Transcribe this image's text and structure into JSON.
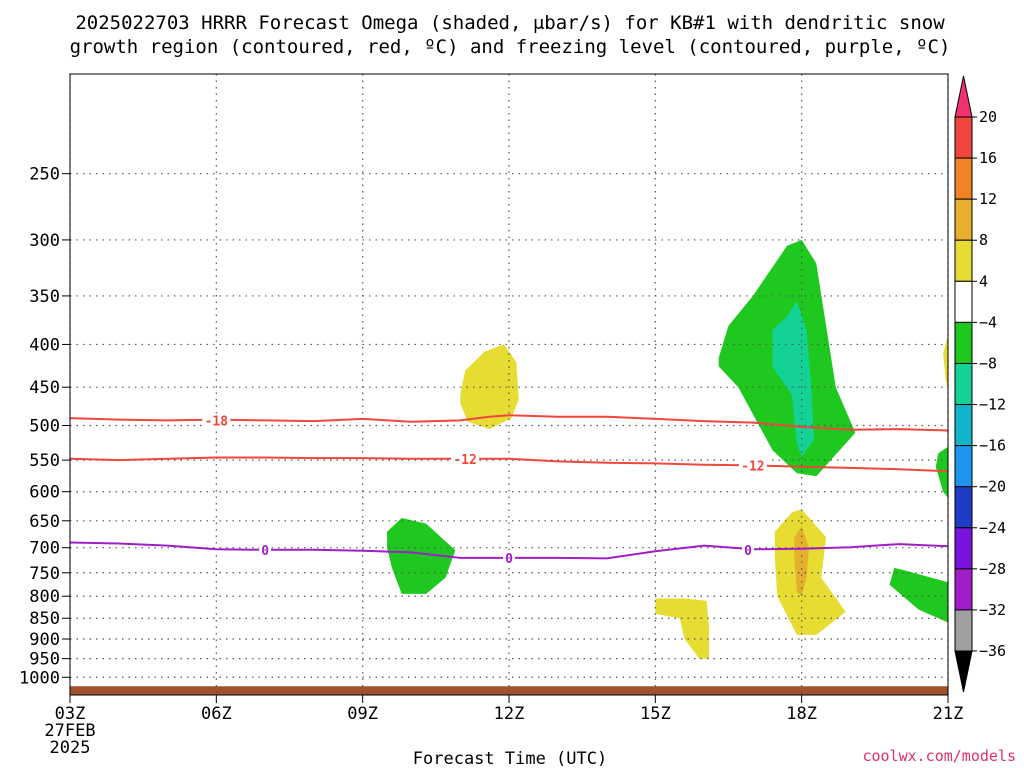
{
  "title": {
    "line1": "2025022703 HRRR Forecast Omega (shaded, μbar/s) for KB#1 with dendritic snow",
    "line2": "growth region (contoured, red, ºC) and freezing level (contoured, purple, ºC)"
  },
  "credit": "coolwx.com/models",
  "colors": {
    "red_contour": "#f0463c",
    "purple_contour": "#a01ec8",
    "ground": "#a0522d",
    "grid": "#555555"
  },
  "chart_data": {
    "type": "contour",
    "xlabel": "Forecast Time (UTC)",
    "ylabel": "",
    "y_scale": "log-pressure",
    "y_reversed": true,
    "xlim_hours": [
      3,
      21
    ],
    "ylim_hPa": [
      1050,
      190
    ],
    "x_ticks": [
      {
        "hour": 3,
        "label": "03Z",
        "sub": [
          "27FEB",
          "2025"
        ]
      },
      {
        "hour": 6,
        "label": "06Z"
      },
      {
        "hour": 9,
        "label": "09Z"
      },
      {
        "hour": 12,
        "label": "12Z"
      },
      {
        "hour": 15,
        "label": "15Z"
      },
      {
        "hour": 18,
        "label": "18Z"
      },
      {
        "hour": 21,
        "label": "21Z"
      }
    ],
    "y_ticks": [
      250,
      300,
      350,
      400,
      450,
      500,
      550,
      600,
      650,
      700,
      750,
      800,
      850,
      900,
      950,
      1000
    ],
    "colorbar": {
      "levels": [
        "20",
        "16",
        "12",
        "8",
        "4",
        "−4",
        "−8",
        "−12",
        "−16",
        "−20",
        "−24",
        "−28",
        "−32",
        "−36"
      ],
      "colors": [
        "#f0326e",
        "#f0463c",
        "#f08228",
        "#e6af2d",
        "#e6dc32",
        "#ffffff",
        "#1ec81e",
        "#14d296",
        "#14b4c8",
        "#1e96f0",
        "#1e3cc8",
        "#7814dc",
        "#a01ec8",
        "#a0a0a0",
        "#000000"
      ]
    },
    "shaded_regions": [
      {
        "band": "4 to 8",
        "color": "#e6dc32",
        "points": [
          [
            11.0,
            460
          ],
          [
            11.1,
            430
          ],
          [
            11.5,
            408
          ],
          [
            11.9,
            400
          ],
          [
            12.15,
            420
          ],
          [
            12.2,
            465
          ],
          [
            12.05,
            490
          ],
          [
            11.6,
            505
          ],
          [
            11.15,
            495
          ],
          [
            11.0,
            470
          ]
        ]
      },
      {
        "band": "-8 to -4",
        "color": "#1ec81e",
        "points": [
          [
            16.3,
            415
          ],
          [
            16.5,
            380
          ],
          [
            17.0,
            350
          ],
          [
            17.7,
            305
          ],
          [
            18.0,
            300
          ],
          [
            18.3,
            320
          ],
          [
            18.5,
            380
          ],
          [
            18.7,
            450
          ],
          [
            19.1,
            510
          ],
          [
            18.3,
            575
          ],
          [
            17.9,
            570
          ],
          [
            17.4,
            535
          ],
          [
            16.7,
            450
          ],
          [
            16.3,
            425
          ]
        ]
      },
      {
        "band": "-12 to -8",
        "color": "#14d296",
        "points": [
          [
            17.4,
            385
          ],
          [
            17.7,
            370
          ],
          [
            17.9,
            355
          ],
          [
            18.1,
            385
          ],
          [
            18.2,
            450
          ],
          [
            18.25,
            520
          ],
          [
            18.0,
            545
          ],
          [
            17.9,
            525
          ],
          [
            17.8,
            460
          ],
          [
            17.4,
            425
          ]
        ]
      },
      {
        "band": "-8 to -4",
        "color": "#1ec81e",
        "points": [
          [
            9.5,
            670
          ],
          [
            9.8,
            645
          ],
          [
            10.3,
            655
          ],
          [
            10.9,
            705
          ],
          [
            10.7,
            760
          ],
          [
            10.3,
            795
          ],
          [
            9.8,
            795
          ],
          [
            9.6,
            740
          ],
          [
            9.5,
            700
          ]
        ]
      },
      {
        "band": "4 to 8",
        "color": "#e6dc32",
        "points": [
          [
            17.45,
            670
          ],
          [
            17.8,
            635
          ],
          [
            18.0,
            630
          ],
          [
            18.5,
            680
          ],
          [
            18.4,
            760
          ],
          [
            18.9,
            835
          ],
          [
            18.3,
            890
          ],
          [
            17.9,
            890
          ],
          [
            17.5,
            800
          ],
          [
            17.45,
            720
          ]
        ]
      },
      {
        "band": "8 to 12",
        "color": "#e6af2d",
        "points": [
          [
            17.85,
            680
          ],
          [
            18.0,
            660
          ],
          [
            18.15,
            700
          ],
          [
            18.1,
            760
          ],
          [
            18.0,
            800
          ],
          [
            17.9,
            790
          ],
          [
            17.85,
            720
          ]
        ]
      },
      {
        "band": "4 to 8",
        "color": "#e6dc32",
        "points": [
          [
            15.0,
            805
          ],
          [
            15.6,
            805
          ],
          [
            16.05,
            810
          ],
          [
            16.1,
            870
          ],
          [
            16.1,
            950
          ],
          [
            15.9,
            950
          ],
          [
            15.6,
            900
          ],
          [
            15.5,
            850
          ],
          [
            15.0,
            840
          ]
        ]
      },
      {
        "band": "-8 to -4",
        "color": "#1ec81e",
        "points": [
          [
            19.9,
            740
          ],
          [
            20.1,
            745
          ],
          [
            21.0,
            770
          ],
          [
            21.0,
            860
          ],
          [
            20.4,
            830
          ],
          [
            19.8,
            775
          ]
        ]
      },
      {
        "band": "-8 to -4",
        "color": "#1ec81e",
        "points": [
          [
            21.0,
            530
          ],
          [
            20.8,
            540
          ],
          [
            20.75,
            560
          ],
          [
            20.9,
            600
          ],
          [
            21.0,
            610
          ]
        ]
      },
      {
        "band": "4 to 8",
        "color": "#e6dc32",
        "points": [
          [
            21.0,
            390
          ],
          [
            20.9,
            410
          ],
          [
            20.95,
            440
          ],
          [
            21.0,
            455
          ]
        ]
      }
    ],
    "contours": [
      {
        "name": "-18",
        "color": "#f0463c",
        "label_positions": [
          [
            6.0,
            493
          ]
        ],
        "points": [
          [
            3,
            490
          ],
          [
            4,
            492
          ],
          [
            5,
            493
          ],
          [
            6,
            492
          ],
          [
            7,
            493
          ],
          [
            8,
            494
          ],
          [
            9,
            491
          ],
          [
            10,
            495
          ],
          [
            11,
            493
          ],
          [
            11.6,
            488
          ],
          [
            12,
            486
          ],
          [
            13,
            488
          ],
          [
            14,
            488
          ],
          [
            15,
            491
          ],
          [
            16,
            494
          ],
          [
            17,
            496
          ],
          [
            18,
            502
          ],
          [
            19,
            506
          ],
          [
            20,
            505
          ],
          [
            21,
            507
          ]
        ]
      },
      {
        "name": "-12",
        "color": "#f0463c",
        "label_positions": [
          [
            11.1,
            548
          ],
          [
            17.0,
            558
          ]
        ],
        "points": [
          [
            3,
            548
          ],
          [
            4,
            550
          ],
          [
            5,
            548
          ],
          [
            6,
            546
          ],
          [
            7,
            546
          ],
          [
            8,
            547
          ],
          [
            9,
            547
          ],
          [
            10,
            548
          ],
          [
            11,
            548
          ],
          [
            12,
            548
          ],
          [
            13,
            552
          ],
          [
            14,
            554
          ],
          [
            15,
            555
          ],
          [
            16,
            557
          ],
          [
            17,
            558
          ],
          [
            18,
            560
          ],
          [
            19,
            562
          ],
          [
            20,
            564
          ],
          [
            21,
            567
          ]
        ]
      },
      {
        "name": "0",
        "color": "#a01ec8",
        "label_positions": [
          [
            7.0,
            704
          ],
          [
            12.0,
            720
          ],
          [
            16.9,
            704
          ]
        ],
        "points": [
          [
            3,
            690
          ],
          [
            4,
            692
          ],
          [
            5,
            696
          ],
          [
            6,
            703
          ],
          [
            7,
            704
          ],
          [
            8,
            704
          ],
          [
            9,
            706
          ],
          [
            10,
            709
          ],
          [
            11,
            720
          ],
          [
            12,
            720
          ],
          [
            13,
            720
          ],
          [
            14,
            721
          ],
          [
            15,
            707
          ],
          [
            16,
            696
          ],
          [
            17,
            703
          ],
          [
            18,
            702
          ],
          [
            19,
            699
          ],
          [
            20,
            693
          ],
          [
            21,
            697
          ]
        ]
      }
    ],
    "ground": {
      "color": "#a0522d",
      "top_hPa": 1025
    }
  }
}
